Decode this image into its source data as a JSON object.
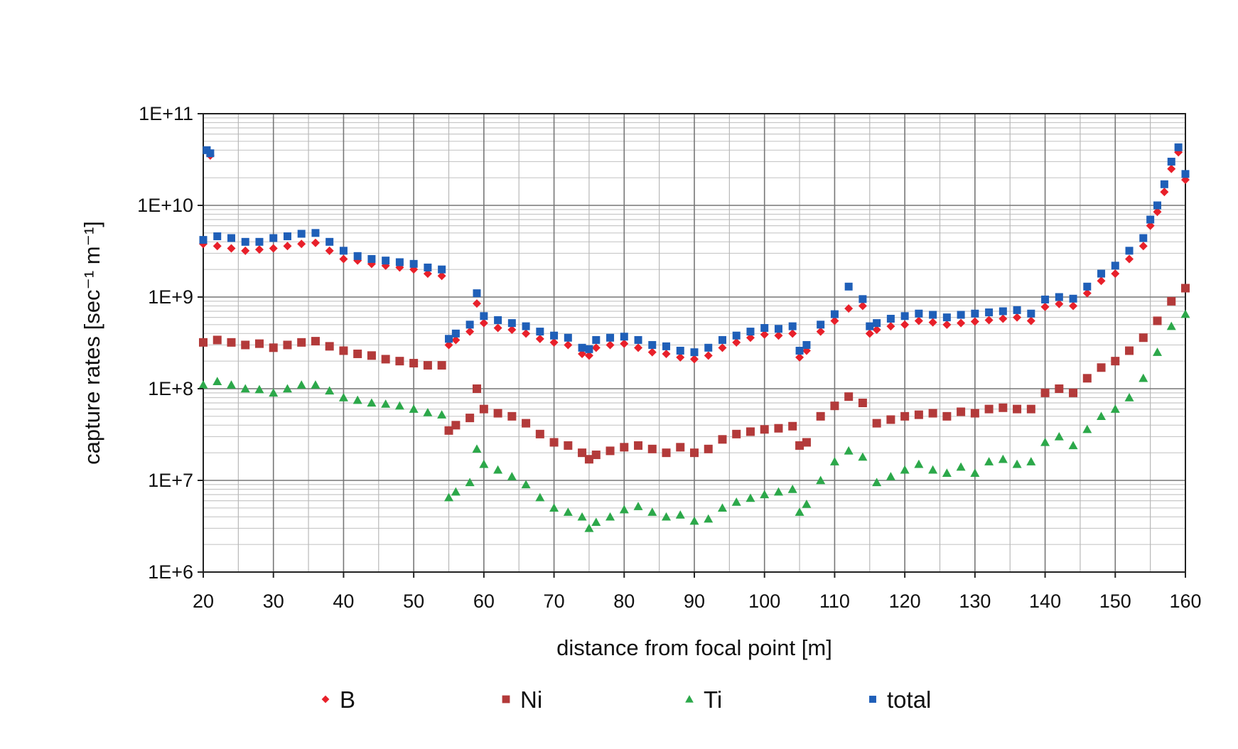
{
  "chart_data": {
    "type": "scatter",
    "title": "",
    "xlabel": "distance from focal point [m]",
    "ylabel": "capture rates  [sec⁻¹ m⁻¹]",
    "xlim": [
      20,
      160
    ],
    "ylim": [
      1000000,
      100000000000
    ],
    "yscale": "log",
    "grid": true,
    "legend_position": "bottom",
    "x_ticks": [
      20,
      30,
      40,
      50,
      60,
      70,
      80,
      90,
      100,
      110,
      120,
      130,
      140,
      150,
      160
    ],
    "x_tick_labels": [
      "20",
      "30",
      "40",
      "50",
      "60",
      "70",
      "80",
      "90",
      "100",
      "110",
      "120",
      "130",
      "140",
      "150",
      "160"
    ],
    "y_ticks": [
      1000000,
      10000000,
      100000000,
      1000000000,
      10000000000,
      100000000000
    ],
    "y_tick_labels": [
      "1E+6",
      "1E+7",
      "1E+8",
      "1E+9",
      "1E+10",
      "1E+11"
    ],
    "series": [
      {
        "name": "B",
        "color": "#e8202a",
        "marker": "diamond",
        "x": [
          20,
          21,
          22,
          24,
          26,
          28,
          30,
          32,
          34,
          36,
          38,
          40,
          42,
          44,
          46,
          48,
          50,
          52,
          54,
          55,
          56,
          58,
          59,
          60,
          62,
          64,
          66,
          68,
          70,
          72,
          74,
          75,
          76,
          78,
          80,
          82,
          84,
          86,
          88,
          90,
          92,
          94,
          96,
          98,
          100,
          102,
          104,
          105,
          106,
          108,
          110,
          112,
          114,
          115,
          116,
          118,
          120,
          122,
          124,
          126,
          128,
          130,
          132,
          134,
          136,
          138,
          140,
          142,
          144,
          146,
          148,
          150,
          152,
          154,
          155,
          156,
          157,
          158,
          159,
          160
        ],
        "y": [
          3800000000.0,
          35000000000.0,
          3600000000.0,
          3400000000.0,
          3200000000.0,
          3300000000.0,
          3400000000.0,
          3600000000.0,
          3800000000.0,
          3900000000.0,
          3200000000.0,
          2600000000.0,
          2500000000.0,
          2300000000.0,
          2200000000.0,
          2100000000.0,
          2000000000.0,
          1800000000.0,
          1700000000.0,
          300000000.0,
          340000000.0,
          420000000.0,
          850000000.0,
          520000000.0,
          460000000.0,
          440000000.0,
          400000000.0,
          350000000.0,
          320000000.0,
          300000000.0,
          240000000.0,
          230000000.0,
          280000000.0,
          300000000.0,
          310000000.0,
          280000000.0,
          250000000.0,
          240000000.0,
          220000000.0,
          210000000.0,
          230000000.0,
          280000000.0,
          320000000.0,
          360000000.0,
          390000000.0,
          380000000.0,
          400000000.0,
          220000000.0,
          260000000.0,
          420000000.0,
          550000000.0,
          750000000.0,
          800000000.0,
          400000000.0,
          440000000.0,
          480000000.0,
          500000000.0,
          550000000.0,
          530000000.0,
          500000000.0,
          520000000.0,
          540000000.0,
          560000000.0,
          580000000.0,
          600000000.0,
          550000000.0,
          780000000.0,
          840000000.0,
          800000000.0,
          1100000000.0,
          1500000000.0,
          1800000000.0,
          2600000000.0,
          3600000000.0,
          6000000000.0,
          8500000000.0,
          14000000000.0,
          25000000000.0,
          38000000000.0,
          19000000000.0
        ]
      },
      {
        "name": "Ni",
        "color": "#b33a3a",
        "marker": "square",
        "x": [
          20,
          22,
          24,
          26,
          28,
          30,
          32,
          34,
          36,
          38,
          40,
          42,
          44,
          46,
          48,
          50,
          52,
          54,
          55,
          56,
          58,
          59,
          60,
          62,
          64,
          66,
          68,
          70,
          72,
          74,
          75,
          76,
          78,
          80,
          82,
          84,
          86,
          88,
          90,
          92,
          94,
          96,
          98,
          100,
          102,
          104,
          105,
          106,
          108,
          110,
          112,
          114,
          116,
          118,
          120,
          122,
          124,
          126,
          128,
          130,
          132,
          134,
          136,
          138,
          140,
          142,
          144,
          146,
          148,
          150,
          152,
          154,
          156,
          158,
          160
        ],
        "y": [
          320000000.0,
          340000000.0,
          320000000.0,
          300000000.0,
          310000000.0,
          280000000.0,
          300000000.0,
          320000000.0,
          330000000.0,
          290000000.0,
          260000000.0,
          240000000.0,
          230000000.0,
          210000000.0,
          200000000.0,
          190000000.0,
          180000000.0,
          180000000.0,
          35000000.0,
          40000000.0,
          48000000.0,
          100000000.0,
          60000000.0,
          54000000.0,
          50000000.0,
          42000000.0,
          32000000.0,
          26000000.0,
          24000000.0,
          20000000.0,
          17000000.0,
          19000000.0,
          21000000.0,
          23000000.0,
          24000000.0,
          22000000.0,
          20000000.0,
          23000000.0,
          20000000.0,
          22000000.0,
          28000000.0,
          32000000.0,
          34000000.0,
          36000000.0,
          37000000.0,
          39000000.0,
          24000000.0,
          26000000.0,
          50000000.0,
          65000000.0,
          82000000.0,
          70000000.0,
          42000000.0,
          46000000.0,
          50000000.0,
          52000000.0,
          54000000.0,
          50000000.0,
          56000000.0,
          54000000.0,
          60000000.0,
          62000000.0,
          60000000.0,
          60000000.0,
          90000000.0,
          100000000.0,
          90000000.0,
          130000000.0,
          170000000.0,
          200000000.0,
          260000000.0,
          360000000.0,
          550000000.0,
          900000000.0,
          1250000000.0
        ]
      },
      {
        "name": "Ti",
        "color": "#2ca84a",
        "marker": "triangle",
        "x": [
          20,
          22,
          24,
          26,
          28,
          30,
          32,
          34,
          36,
          38,
          40,
          42,
          44,
          46,
          48,
          50,
          52,
          54,
          55,
          56,
          58,
          59,
          60,
          62,
          64,
          66,
          68,
          70,
          72,
          74,
          75,
          76,
          78,
          80,
          82,
          84,
          86,
          88,
          90,
          92,
          94,
          96,
          98,
          100,
          102,
          104,
          105,
          106,
          108,
          110,
          112,
          114,
          116,
          118,
          120,
          122,
          124,
          126,
          128,
          130,
          132,
          134,
          136,
          138,
          140,
          142,
          144,
          146,
          148,
          150,
          152,
          154,
          156,
          158,
          160
        ],
        "y": [
          110000000.0,
          120000000.0,
          110000000.0,
          100000000.0,
          98000000.0,
          90000000.0,
          100000000.0,
          110000000.0,
          110000000.0,
          95000000.0,
          80000000.0,
          75000000.0,
          70000000.0,
          68000000.0,
          65000000.0,
          60000000.0,
          55000000.0,
          52000000.0,
          6500000.0,
          7500000.0,
          9500000.0,
          22000000.0,
          15000000.0,
          13000000.0,
          11000000.0,
          9000000.0,
          6500000.0,
          5000000.0,
          4500000.0,
          4000000.0,
          3000000.0,
          3500000.0,
          4000000.0,
          4800000.0,
          5200000.0,
          4500000.0,
          4000000.0,
          4200000.0,
          3600000.0,
          3800000.0,
          5000000.0,
          5800000.0,
          6400000.0,
          7000000.0,
          7500000.0,
          8000000.0,
          4500000.0,
          5500000.0,
          10000000.0,
          16000000.0,
          21000000.0,
          18000000.0,
          9500000.0,
          11000000.0,
          13000000.0,
          15000000.0,
          13000000.0,
          12000000.0,
          14000000.0,
          12000000.0,
          16000000.0,
          17000000.0,
          15000000.0,
          16000000.0,
          26000000.0,
          30000000.0,
          24000000.0,
          36000000.0,
          50000000.0,
          60000000.0,
          80000000.0,
          130000000.0,
          250000000.0,
          480000000.0,
          650000000.0
        ]
      },
      {
        "name": "total",
        "color": "#1f5fb8",
        "marker": "square-small",
        "x": [
          20,
          20.5,
          21,
          22,
          24,
          26,
          28,
          30,
          32,
          34,
          36,
          38,
          40,
          42,
          44,
          46,
          48,
          50,
          52,
          54,
          55,
          56,
          58,
          59,
          60,
          62,
          64,
          66,
          68,
          70,
          72,
          74,
          75,
          76,
          78,
          80,
          82,
          84,
          86,
          88,
          90,
          92,
          94,
          96,
          98,
          100,
          102,
          104,
          105,
          106,
          108,
          110,
          112,
          114,
          115,
          116,
          118,
          120,
          122,
          124,
          126,
          128,
          130,
          132,
          134,
          136,
          138,
          140,
          142,
          144,
          146,
          148,
          150,
          152,
          154,
          155,
          156,
          157,
          158,
          159,
          160
        ],
        "y": [
          4200000000.0,
          40000000000.0,
          37000000000.0,
          4600000000.0,
          4400000000.0,
          4000000000.0,
          4000000000.0,
          4400000000.0,
          4600000000.0,
          4900000000.0,
          5000000000.0,
          4000000000.0,
          3200000000.0,
          2800000000.0,
          2600000000.0,
          2500000000.0,
          2400000000.0,
          2300000000.0,
          2100000000.0,
          2000000000.0,
          350000000.0,
          400000000.0,
          500000000.0,
          1100000000.0,
          620000000.0,
          560000000.0,
          520000000.0,
          480000000.0,
          420000000.0,
          380000000.0,
          360000000.0,
          280000000.0,
          270000000.0,
          340000000.0,
          360000000.0,
          370000000.0,
          340000000.0,
          300000000.0,
          290000000.0,
          260000000.0,
          250000000.0,
          280000000.0,
          340000000.0,
          380000000.0,
          420000000.0,
          460000000.0,
          450000000.0,
          480000000.0,
          260000000.0,
          300000000.0,
          500000000.0,
          650000000.0,
          1300000000.0,
          950000000.0,
          480000000.0,
          520000000.0,
          580000000.0,
          620000000.0,
          660000000.0,
          640000000.0,
          600000000.0,
          640000000.0,
          660000000.0,
          680000000.0,
          700000000.0,
          720000000.0,
          660000000.0,
          940000000.0,
          1000000000.0,
          960000000.0,
          1300000000.0,
          1800000000.0,
          2200000000.0,
          3200000000.0,
          4400000000.0,
          7000000000.0,
          10000000000.0,
          17000000000.0,
          30000000000.0,
          43000000000.0,
          22000000000.0
        ]
      }
    ]
  }
}
